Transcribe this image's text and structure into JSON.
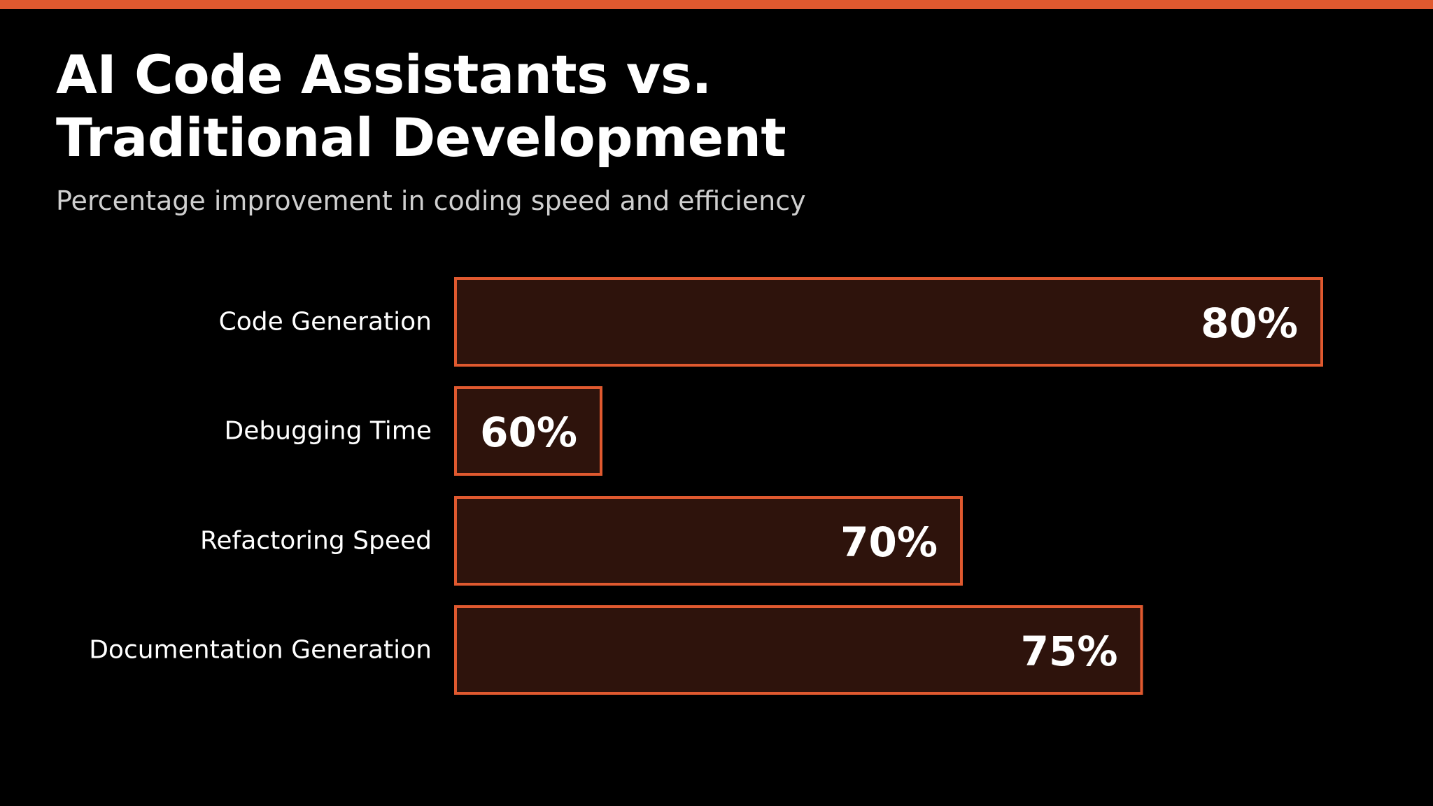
{
  "slide": {
    "title": "AI Code Assistants vs.\nTraditional Development",
    "subtitle": "Percentage improvement in coding speed and efficiency"
  },
  "colors": {
    "background": "#000000",
    "accent": "#e0592f",
    "bar_fill": "#2e130c",
    "text": "#ffffff",
    "subtitle": "#cfcfcf"
  },
  "chart_data": {
    "type": "bar",
    "orientation": "horizontal",
    "categories": [
      "Code Generation",
      "Debugging Time",
      "Refactoring Speed",
      "Documentation Generation"
    ],
    "values": [
      80,
      60,
      70,
      75
    ],
    "data_labels": [
      "80%",
      "60%",
      "70%",
      "75%"
    ],
    "value_unit": "%",
    "grid": false,
    "legend": "none"
  }
}
